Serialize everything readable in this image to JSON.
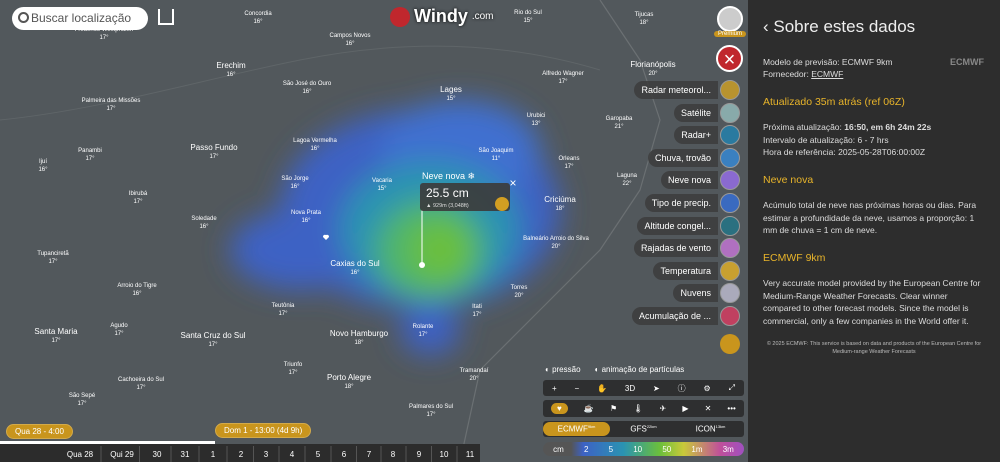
{
  "search": {
    "placeholder": "Buscar localização"
  },
  "logo": {
    "text": "Windy",
    "suffix": ".com"
  },
  "cities": [
    {
      "name": "Concordia",
      "temp": "16°"
    },
    {
      "name": "Campos Novos",
      "temp": "16°"
    },
    {
      "name": "Rio do Sul",
      "temp": "15°"
    },
    {
      "name": "Tijucas",
      "temp": "18°"
    },
    {
      "name": "Frederico Westphalen",
      "temp": "17°"
    },
    {
      "name": "Erechim",
      "temp": "16°"
    },
    {
      "name": "São José do Ouro",
      "temp": "16°"
    },
    {
      "name": "Lages",
      "temp": "15°"
    },
    {
      "name": "Alfredo Wagner",
      "temp": "17°"
    },
    {
      "name": "Florianópolis",
      "temp": "20°"
    },
    {
      "name": "Palmeira das Missões",
      "temp": "17°"
    },
    {
      "name": "Urubici",
      "temp": "13°"
    },
    {
      "name": "Garopaba",
      "temp": "21°"
    },
    {
      "name": "Passo Fundo",
      "temp": "17°"
    },
    {
      "name": "Lagoa Vermelha",
      "temp": "16°"
    },
    {
      "name": "São Joaquim",
      "temp": "11°"
    },
    {
      "name": "Orleans",
      "temp": "17°"
    },
    {
      "name": "Panambi",
      "temp": "17°"
    },
    {
      "name": "Ijuí",
      "temp": "16°"
    },
    {
      "name": "São Jorge",
      "temp": "16°"
    },
    {
      "name": "Vacaria",
      "temp": "15°"
    },
    {
      "name": "Laguna",
      "temp": "22°"
    },
    {
      "name": "Ibirubá",
      "temp": "17°"
    },
    {
      "name": "Criciúma",
      "temp": "18°"
    },
    {
      "name": "Nova Prata",
      "temp": "16°"
    },
    {
      "name": "Soledade",
      "temp": "16°"
    },
    {
      "name": "Balneário Arroio do Silva",
      "temp": "20°"
    },
    {
      "name": "Tupanciretã",
      "temp": "17°"
    },
    {
      "name": "Caxias do Sul",
      "temp": "16°"
    },
    {
      "name": "Arroio do Tigre",
      "temp": "16°"
    },
    {
      "name": "Torres",
      "temp": "20°"
    },
    {
      "name": "Teutônia",
      "temp": "17°"
    },
    {
      "name": "Itati",
      "temp": "17°"
    },
    {
      "name": "Agudo",
      "temp": "17°"
    },
    {
      "name": "Rolante",
      "temp": "17°"
    },
    {
      "name": "Santa Maria",
      "temp": "17°"
    },
    {
      "name": "Santa Cruz do Sul",
      "temp": "17°"
    },
    {
      "name": "Novo Hamburgo",
      "temp": "18°"
    },
    {
      "name": "Triunfo",
      "temp": "17°"
    },
    {
      "name": "Tramandaí",
      "temp": "20°"
    },
    {
      "name": "Porto Alegre",
      "temp": "18°"
    },
    {
      "name": "Cachoeira do Sul",
      "temp": "17°"
    },
    {
      "name": "São Sepé",
      "temp": "17°"
    },
    {
      "name": "Palmares do Sul",
      "temp": "17°"
    }
  ],
  "popup": {
    "title": "Neve nova ❄",
    "value": "25.5 cm",
    "elevation": "▲ 929m (3,048ft)"
  },
  "account": {
    "badge": "Premium"
  },
  "layers": [
    "Radar meteorol...",
    "Satélite",
    "Radar+",
    "Chuva, trovão",
    "Neve nova",
    "Tipo de precip.",
    "Altitude congel...",
    "Rajadas de vento",
    "Temperatura",
    "Nuvens",
    "Acumulação de ..."
  ],
  "toggles": [
    "pressão",
    "animação de partículas"
  ],
  "toolbar": {
    "mode": "3D"
  },
  "models": [
    {
      "name": "ECMWF",
      "res": "9km"
    },
    {
      "name": "GFS",
      "res": "22km"
    },
    {
      "name": "ICON",
      "res": "13km"
    }
  ],
  "legend": [
    "cm",
    "2",
    "5",
    "10",
    "50",
    "1m",
    "3m"
  ],
  "timeline": {
    "current": "Qua 28 - 4:00",
    "selected": "Dom 1 - 13:00 (4d 9h)",
    "days": [
      "Qua 28",
      "Qui 29",
      "30",
      "31",
      "1",
      "2",
      "3",
      "4",
      "5",
      "6",
      "7",
      "8",
      "9",
      "10",
      "11"
    ]
  },
  "panel": {
    "title": "Sobre estes dados",
    "model": "Modelo de previsão: ECMWF 9km",
    "provider_label": "Fornecedor:",
    "provider": "ECMWF",
    "provider_logo": "ECMWF",
    "updated": "Atualizado 35m atrás (ref 06Z)",
    "next_label": "Próxima atualização:",
    "next_value": "16:50,  em 6h 24m 22s",
    "interval": "Intervalo de atualização: 6 - 7 hrs",
    "reference": "Hora de referência: 2025-05-28T06:00:00Z",
    "layer_heading": "Neve nova",
    "layer_text": "Acúmulo total de neve nas próximas horas ou dias. Para estimar a profundidade da neve, usamos a proporção: 1 mm de chuva = 1 cm de neve.",
    "model_heading": "ECMWF 9km",
    "model_text": "Very accurate model provided by the European Centre for Medium-Range Weather Forecasts. Clear winner compared to other forecast models. Since the model is commercial, only a few companies in the World offer it.",
    "footer": "© 2025 ECMWF: This service is based on data and products of the European Centre for Medium-range Weather Forecasts"
  }
}
